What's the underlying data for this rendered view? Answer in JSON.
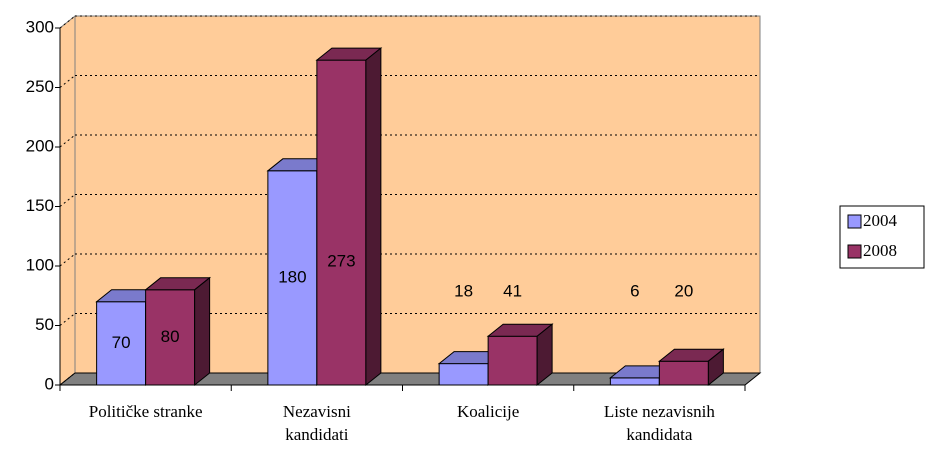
{
  "chart_data": {
    "type": "bar3d",
    "categories": [
      [
        "Političke stranke"
      ],
      [
        "Nezavisni",
        "kandidati"
      ],
      [
        "Koalicije"
      ],
      [
        "Liste nezavisnih",
        "kandidata"
      ]
    ],
    "series": [
      {
        "name": "2004",
        "color": "#9999ff",
        "values": [
          70,
          180,
          18,
          6
        ]
      },
      {
        "name": "2008",
        "color": "#993366",
        "values": [
          80,
          273,
          41,
          20
        ]
      }
    ],
    "ylim": [
      0,
      300
    ],
    "yticks": [
      0,
      50,
      100,
      150,
      200,
      250,
      300
    ],
    "grid": true,
    "legend": "right"
  }
}
